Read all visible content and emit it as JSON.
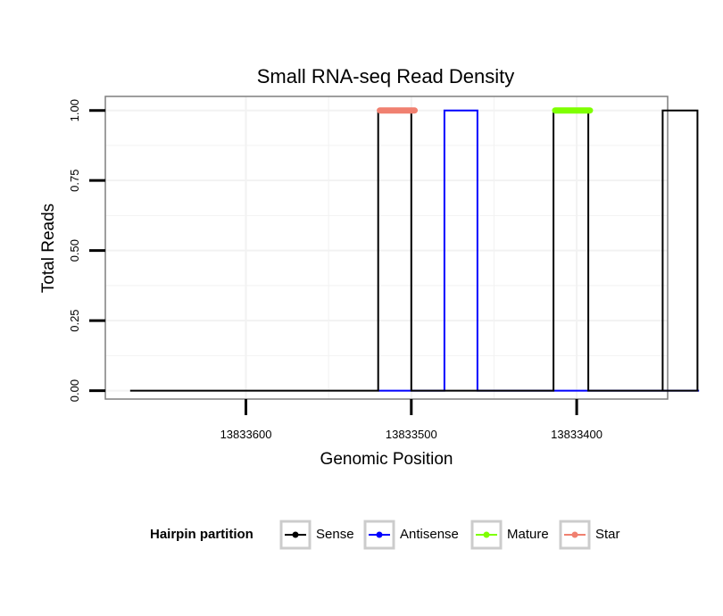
{
  "chart_data": {
    "type": "line",
    "title": "Small RNA-seq Read Density",
    "xlabel": "Genomic Position",
    "ylabel": "Total Reads",
    "x_reversed": true,
    "xlim": [
      13833685,
      13833345
    ],
    "ylim": [
      -0.03,
      1.05
    ],
    "x_ticks": [
      13833600,
      13833500,
      13833400
    ],
    "x_tick_labels": [
      "13833600",
      "13833500",
      "13833400"
    ],
    "y_ticks": [
      0,
      0.25,
      0.5,
      0.75,
      1
    ],
    "y_tick_labels": [
      "0.00",
      "0.25",
      "0.50",
      "0.75",
      "1.00"
    ],
    "grid": true,
    "legend": {
      "title": "Hairpin partition",
      "position": "bottom",
      "entries": [
        "Sense",
        "Antisense",
        "Mature",
        "Star"
      ]
    },
    "series": [
      {
        "name": "Sense",
        "color": "#000000",
        "style": "line",
        "x": [
          13833670,
          13833520,
          13833520,
          13833500,
          13833500,
          13833414,
          13833414,
          13833393,
          13833393,
          13833348,
          13833348,
          13833327,
          13833327,
          13833355
        ],
        "y": [
          0,
          0,
          1,
          1,
          0,
          0,
          1,
          1,
          0,
          0,
          1,
          1,
          0,
          0
        ]
      },
      {
        "name": "Antisense",
        "color": "#0000ff",
        "style": "line",
        "x": [
          13833520,
          13833480,
          13833480,
          13833460,
          13833460,
          13833415,
          13833415,
          13833392,
          13833392,
          13833349,
          13833349,
          13833326
        ],
        "y": [
          0,
          0,
          1,
          1,
          0,
          0,
          0,
          0,
          0,
          0,
          0,
          0
        ]
      },
      {
        "name": "Mature",
        "color": "#7fff00",
        "style": "segment",
        "x": [
          13833413,
          13833392
        ],
        "y": [
          1,
          1
        ]
      },
      {
        "name": "Star",
        "color": "#f08070",
        "style": "segment",
        "x": [
          13833519,
          13833498
        ],
        "y": [
          1,
          1
        ]
      }
    ]
  }
}
